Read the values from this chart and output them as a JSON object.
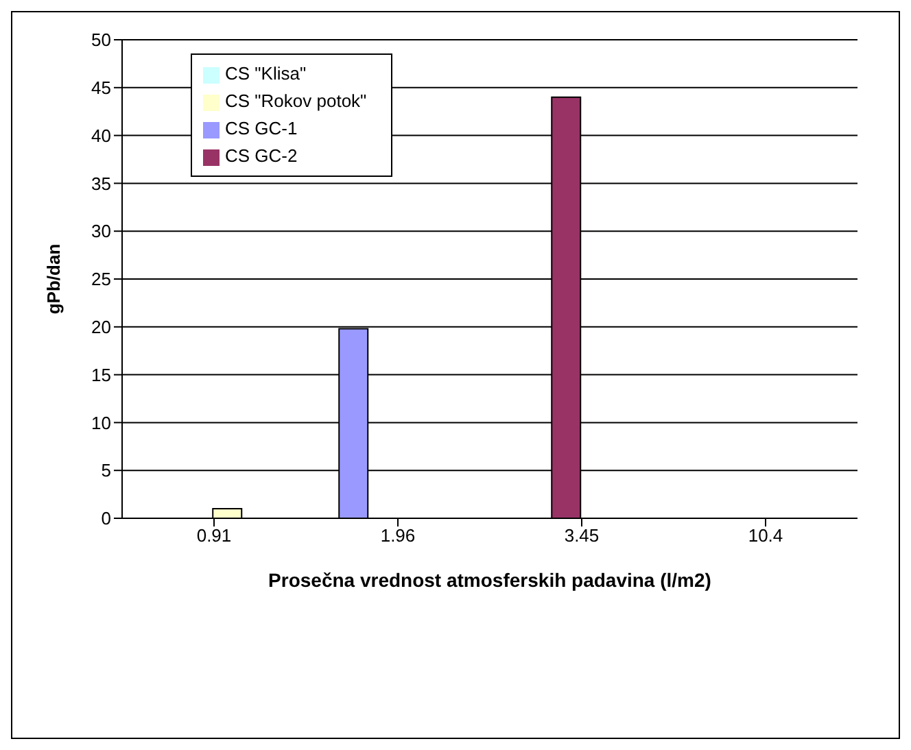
{
  "chart_data": {
    "type": "bar",
    "xlabel": "Prosečna vrednost atmosferskih padavina (l/m2)",
    "ylabel": "gPb/dan",
    "categories": [
      "0.91",
      "1.96",
      "3.45",
      "10.4"
    ],
    "series": [
      {
        "name": "CS GC-1",
        "color": "#9999ff",
        "values": [
          null,
          19.8,
          null,
          null
        ]
      },
      {
        "name": "CS GC-2",
        "color": "#993366",
        "values": [
          null,
          null,
          44,
          null
        ]
      },
      {
        "name": "CS \"Rokov potok\"",
        "color": "#ffffcc",
        "values": [
          1,
          null,
          null,
          null
        ]
      },
      {
        "name": "CS \"Klisa\"",
        "color": "#ccffff",
        "values": [
          null,
          null,
          null,
          null
        ]
      }
    ],
    "ylim": [
      0,
      50
    ],
    "yticks": [
      0,
      5,
      10,
      15,
      20,
      25,
      30,
      35,
      40,
      45,
      50
    ],
    "grid": "y",
    "legend": "top left"
  }
}
